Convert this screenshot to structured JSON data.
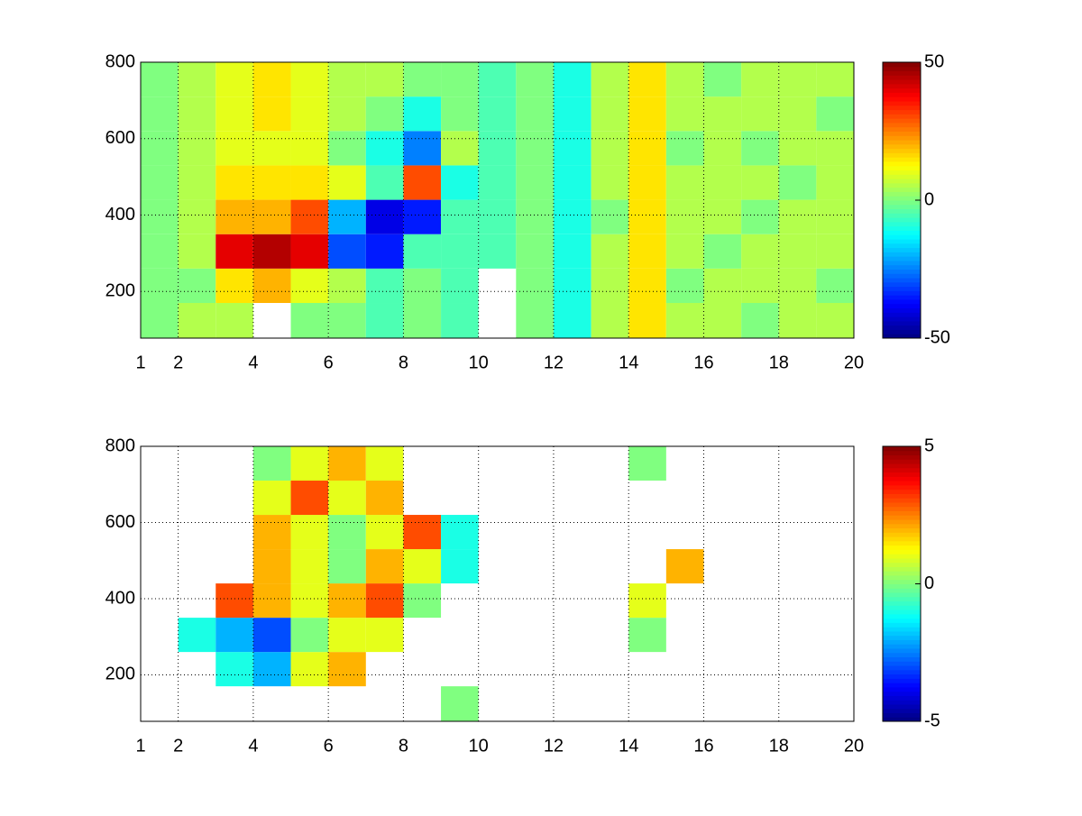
{
  "chart_data": [
    {
      "type": "heatmap",
      "colormap": "jet",
      "grid": true,
      "xlim": [
        1,
        20
      ],
      "xticks": [
        1,
        2,
        4,
        6,
        8,
        10,
        12,
        14,
        16,
        18,
        20
      ],
      "ylim": [
        78,
        800
      ],
      "yticks": [
        200,
        400,
        600,
        800
      ],
      "clim": [
        -50,
        50
      ],
      "cticks": [
        -50,
        0,
        50
      ],
      "x_edges": [
        1,
        2,
        3,
        4,
        5,
        6,
        7,
        8,
        9,
        10,
        11,
        12,
        13,
        14,
        15,
        16,
        17,
        18,
        19,
        20
      ],
      "y_edges": [
        78,
        170,
        260,
        350,
        440,
        530,
        620,
        710,
        800
      ],
      "z": [
        [
          0,
          5,
          5,
          null,
          0,
          0,
          -5,
          0,
          -5,
          null,
          0,
          -10,
          5,
          15,
          5,
          5,
          0,
          5,
          5
        ],
        [
          0,
          0,
          15,
          20,
          10,
          5,
          -5,
          0,
          -5,
          null,
          0,
          -10,
          5,
          15,
          0,
          5,
          5,
          5,
          0
        ],
        [
          0,
          5,
          40,
          45,
          40,
          -30,
          -35,
          -5,
          -5,
          -5,
          0,
          -10,
          5,
          15,
          5,
          0,
          5,
          5,
          5
        ],
        [
          0,
          5,
          20,
          20,
          30,
          -20,
          -40,
          -35,
          -5,
          -5,
          0,
          -10,
          0,
          15,
          5,
          5,
          0,
          5,
          5
        ],
        [
          0,
          5,
          15,
          15,
          15,
          10,
          -5,
          30,
          -10,
          -5,
          0,
          -10,
          5,
          15,
          5,
          5,
          5,
          0,
          5
        ],
        [
          0,
          5,
          10,
          10,
          10,
          0,
          -10,
          -25,
          5,
          -5,
          0,
          -10,
          5,
          15,
          0,
          5,
          0,
          5,
          5
        ],
        [
          0,
          5,
          10,
          15,
          10,
          5,
          0,
          -10,
          0,
          -5,
          0,
          -10,
          5,
          15,
          5,
          5,
          5,
          5,
          0
        ],
        [
          0,
          5,
          10,
          15,
          10,
          5,
          5,
          0,
          0,
          -5,
          0,
          -10,
          5,
          15,
          5,
          0,
          5,
          5,
          5
        ]
      ]
    },
    {
      "type": "heatmap",
      "colormap": "jet",
      "grid": true,
      "xlim": [
        1,
        20
      ],
      "xticks": [
        1,
        2,
        4,
        6,
        8,
        10,
        12,
        14,
        16,
        18,
        20
      ],
      "ylim": [
        78,
        800
      ],
      "yticks": [
        200,
        400,
        600,
        800
      ],
      "clim": [
        -5,
        5
      ],
      "cticks": [
        -5,
        0,
        5
      ],
      "x_edges": [
        1,
        2,
        3,
        4,
        5,
        6,
        7,
        8,
        9,
        10,
        11,
        12,
        13,
        14,
        15,
        16,
        17,
        18,
        19,
        20
      ],
      "y_edges": [
        78,
        170,
        260,
        350,
        440,
        530,
        620,
        710,
        800
      ],
      "z": [
        [
          null,
          null,
          null,
          null,
          null,
          null,
          null,
          null,
          0,
          null,
          null,
          null,
          null,
          null,
          null,
          null,
          null,
          null,
          null
        ],
        [
          null,
          null,
          -1,
          -2,
          1,
          2,
          null,
          null,
          null,
          null,
          null,
          null,
          null,
          null,
          null,
          null,
          null,
          null,
          null
        ],
        [
          null,
          -1,
          -2,
          -3,
          0,
          1,
          1,
          null,
          null,
          null,
          null,
          null,
          null,
          0,
          null,
          null,
          null,
          null,
          null
        ],
        [
          null,
          null,
          3,
          2,
          1,
          2,
          3,
          0,
          null,
          null,
          null,
          null,
          null,
          1,
          null,
          null,
          null,
          null,
          null
        ],
        [
          null,
          null,
          null,
          2,
          1,
          0,
          2,
          1,
          -1,
          null,
          null,
          null,
          null,
          null,
          2,
          null,
          null,
          null,
          null
        ],
        [
          null,
          null,
          null,
          2,
          1,
          0,
          1,
          3,
          -1,
          null,
          null,
          null,
          null,
          null,
          null,
          null,
          null,
          null,
          null
        ],
        [
          null,
          null,
          null,
          1,
          3,
          1,
          2,
          null,
          null,
          null,
          null,
          null,
          null,
          null,
          null,
          null,
          null,
          null,
          null
        ],
        [
          null,
          null,
          null,
          0,
          1,
          2,
          1,
          null,
          null,
          null,
          null,
          null,
          null,
          0,
          null,
          null,
          null,
          null,
          null
        ]
      ]
    }
  ]
}
